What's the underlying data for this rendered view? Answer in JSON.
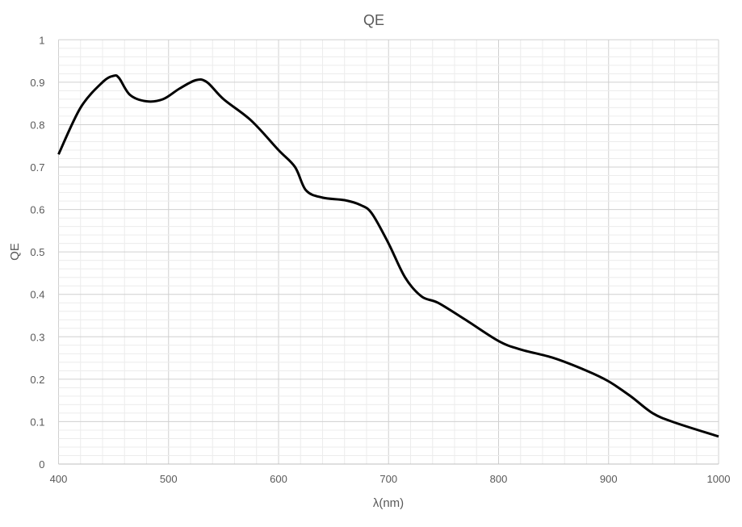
{
  "chart_data": {
    "type": "line",
    "title": "QE",
    "xlabel": "λ(nm)",
    "ylabel": "QE",
    "xlim": [
      400,
      1000
    ],
    "ylim": [
      0,
      1
    ],
    "x_ticks": [
      "400",
      "500",
      "600",
      "700",
      "800",
      "900",
      "1000"
    ],
    "y_ticks": [
      "0",
      "0.1",
      "0.2",
      "0.3",
      "0.4",
      "0.5",
      "0.6",
      "0.7",
      "0.8",
      "0.9",
      "1"
    ],
    "grid": {
      "major": true,
      "minor": true
    },
    "line_color": "#000000",
    "series": [
      {
        "x": [
          400,
          420,
          440,
          450,
          455,
          465,
          480,
          495,
          510,
          525,
          535,
          550,
          575,
          600,
          615,
          625,
          640,
          660,
          675,
          685,
          700,
          715,
          730,
          745,
          770,
          800,
          820,
          850,
          880,
          900,
          920,
          940,
          960,
          1000
        ],
        "y": [
          0.73,
          0.84,
          0.9,
          0.915,
          0.91,
          0.87,
          0.855,
          0.86,
          0.885,
          0.905,
          0.9,
          0.86,
          0.81,
          0.74,
          0.7,
          0.645,
          0.628,
          0.622,
          0.61,
          0.59,
          0.52,
          0.44,
          0.395,
          0.38,
          0.34,
          0.29,
          0.27,
          0.25,
          0.22,
          0.195,
          0.16,
          0.12,
          0.098,
          0.065
        ]
      }
    ]
  }
}
